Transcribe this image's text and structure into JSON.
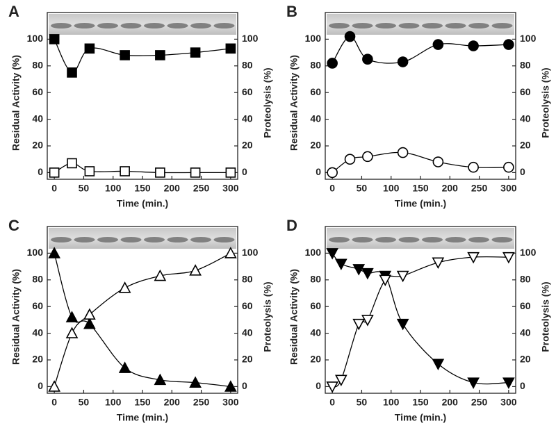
{
  "chart_data": [
    {
      "type": "scatter",
      "panel_label": "A",
      "x_label": "Time (min.)",
      "y_label": "Residual Activity (%)",
      "y2_label": "Proteolysis (%)",
      "x": [
        0,
        30,
        60,
        120,
        180,
        240,
        300
      ],
      "series": [
        {
          "color": "#000000",
          "marker": "square",
          "filled": true,
          "values": [
            100,
            75,
            93,
            88,
            88,
            90,
            93
          ]
        },
        {
          "color": "#000000",
          "marker": "square",
          "filled": false,
          "axis": "y2",
          "values": [
            0,
            7,
            1,
            1,
            0,
            0,
            0
          ]
        }
      ],
      "xlim": [
        -12,
        312
      ],
      "xticks": [
        0,
        50,
        100,
        150,
        200,
        250,
        300
      ],
      "ylim": [
        -5,
        120
      ],
      "yticks": [
        0,
        20,
        40,
        60,
        80,
        100
      ],
      "y2lim": [
        -5,
        120
      ],
      "y2ticks": [
        0,
        20,
        40,
        60,
        80,
        100
      ]
    },
    {
      "type": "scatter",
      "panel_label": "B",
      "x_label": "Time (min.)",
      "y_label": "Residual Activity (%)",
      "y2_label": "Proteolysis (%)",
      "x": [
        0,
        30,
        60,
        120,
        180,
        240,
        300
      ],
      "series": [
        {
          "color": "#000000",
          "marker": "circle",
          "filled": true,
          "values": [
            82,
            102,
            85,
            83,
            96,
            95,
            96
          ]
        },
        {
          "color": "#000000",
          "marker": "circle",
          "filled": false,
          "axis": "y2",
          "values": [
            0,
            10,
            12,
            15,
            8,
            4,
            4
          ]
        }
      ],
      "xlim": [
        -12,
        312
      ],
      "xticks": [
        0,
        50,
        100,
        150,
        200,
        250,
        300
      ],
      "ylim": [
        -5,
        120
      ],
      "yticks": [
        0,
        20,
        40,
        60,
        80,
        100
      ],
      "y2lim": [
        -5,
        120
      ],
      "y2ticks": [
        0,
        20,
        40,
        60,
        80,
        100
      ]
    },
    {
      "type": "scatter",
      "panel_label": "C",
      "x_label": "Time (min.)",
      "y_label": "Residual Activity (%)",
      "y2_label": "Proteolysis (%)",
      "x": [
        0,
        30,
        60,
        120,
        180,
        240,
        300
      ],
      "series": [
        {
          "color": "#000000",
          "marker": "triangle-up",
          "filled": true,
          "values": [
            100,
            52,
            47,
            14,
            5,
            3,
            0
          ]
        },
        {
          "color": "#000000",
          "marker": "triangle-up",
          "filled": false,
          "axis": "y2",
          "values": [
            0,
            40,
            54,
            74,
            83,
            87,
            100
          ]
        }
      ],
      "xlim": [
        -12,
        312
      ],
      "xticks": [
        0,
        50,
        100,
        150,
        200,
        250,
        300
      ],
      "ylim": [
        -5,
        120
      ],
      "yticks": [
        0,
        20,
        40,
        60,
        80,
        100
      ],
      "y2lim": [
        -5,
        120
      ],
      "y2ticks": [
        0,
        20,
        40,
        60,
        80,
        100
      ]
    },
    {
      "type": "scatter",
      "panel_label": "D",
      "x_label": "Time (min.)",
      "y_label": "Residual Activity (%)",
      "y2_label": "Proteolysis (%)",
      "x": [
        0,
        15,
        45,
        60,
        90,
        120,
        180,
        240,
        300
      ],
      "series": [
        {
          "color": "#000000",
          "marker": "triangle-down",
          "filled": true,
          "values": [
            100,
            92,
            88,
            85,
            83,
            47,
            17,
            3,
            3
          ]
        },
        {
          "color": "#000000",
          "marker": "triangle-down",
          "filled": false,
          "axis": "y2",
          "values": [
            0,
            5,
            47,
            50,
            80,
            83,
            93,
            97,
            97
          ]
        }
      ],
      "xlim": [
        -12,
        312
      ],
      "xticks": [
        0,
        50,
        100,
        150,
        200,
        250,
        300
      ],
      "ylim": [
        -5,
        120
      ],
      "yticks": [
        0,
        20,
        40,
        60,
        80,
        100
      ],
      "y2lim": [
        -5,
        120
      ],
      "y2ticks": [
        0,
        20,
        40,
        60,
        80,
        100
      ]
    }
  ]
}
